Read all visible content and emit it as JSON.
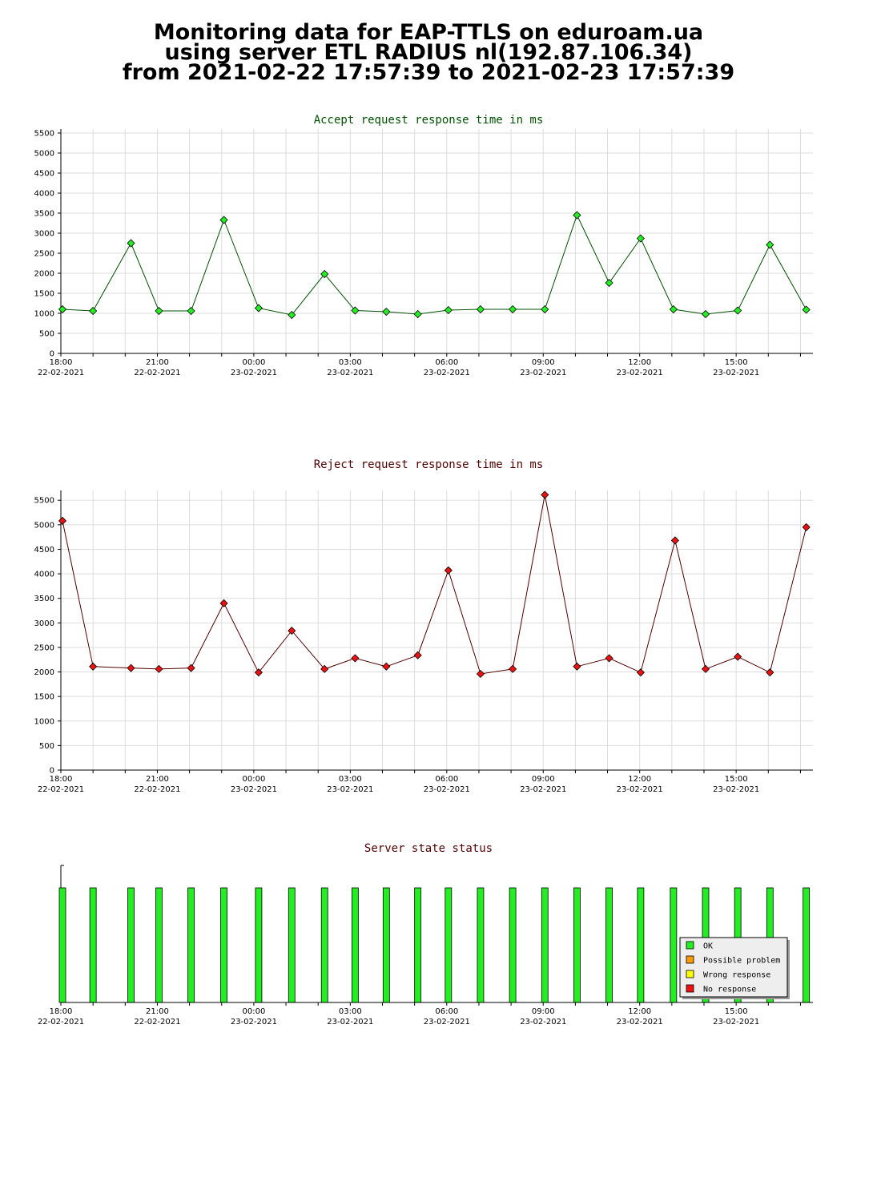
{
  "header": {
    "line1": "Monitoring data for EAP-TTLS on eduroam.ua",
    "line2": "using server ETL RADIUS nl(192.87.106.34)",
    "line3": "from 2021-02-22 17:57:39 to 2021-02-23 17:57:39"
  },
  "colors": {
    "accept_title": "#005000",
    "accept_marker": "#22ee22",
    "accept_line": "#005000",
    "reject_title": "#500000",
    "reject_marker": "#ee1111",
    "reject_line": "#500000",
    "status_bar": "#22ee22",
    "grid": "#dddddd"
  },
  "x_ticks": [
    {
      "time": "18:00",
      "date": "22-02-2021"
    },
    {
      "time": "21:00",
      "date": "22-02-2021"
    },
    {
      "time": "00:00",
      "date": "23-02-2021"
    },
    {
      "time": "03:00",
      "date": "23-02-2021"
    },
    {
      "time": "06:00",
      "date": "23-02-2021"
    },
    {
      "time": "09:00",
      "date": "23-02-2021"
    },
    {
      "time": "12:00",
      "date": "23-02-2021"
    },
    {
      "time": "15:00",
      "date": "23-02-2021"
    }
  ],
  "chart_data": [
    {
      "type": "line",
      "title": "Accept request response time in ms",
      "x_unit": "hours since 2021-02-22 18:00",
      "ylim": [
        0,
        5600
      ],
      "yticks": [
        0,
        500,
        1000,
        1500,
        2000,
        2500,
        3000,
        3500,
        4000,
        4500,
        5000,
        5500
      ],
      "grid": true,
      "x": [
        0.05,
        1.0,
        2.18,
        3.05,
        4.05,
        5.07,
        6.15,
        7.18,
        8.2,
        9.15,
        10.12,
        11.1,
        12.05,
        13.05,
        14.05,
        15.05,
        16.05,
        17.05,
        18.03,
        19.05,
        20.05,
        21.05,
        22.05,
        23.18
      ],
      "values": [
        1100,
        1060,
        2750,
        1060,
        1060,
        3330,
        1130,
        960,
        1980,
        1070,
        1040,
        980,
        1080,
        1100,
        1100,
        1100,
        3450,
        1760,
        2870,
        1100,
        980,
        1070,
        2710,
        1090
      ]
    },
    {
      "type": "line",
      "title": "Reject request response time in ms",
      "x_unit": "hours since 2021-02-22 18:00",
      "ylim": [
        0,
        5700
      ],
      "yticks": [
        0,
        500,
        1000,
        1500,
        2000,
        2500,
        3000,
        3500,
        4000,
        4500,
        5000,
        5500
      ],
      "grid": true,
      "x": [
        0.05,
        1.0,
        2.18,
        3.05,
        4.05,
        5.07,
        6.15,
        7.18,
        8.2,
        9.15,
        10.12,
        11.1,
        12.05,
        13.05,
        14.05,
        15.05,
        16.05,
        17.05,
        18.03,
        19.1,
        20.05,
        21.05,
        22.05,
        23.18
      ],
      "values": [
        5080,
        2110,
        2080,
        2060,
        2080,
        3400,
        1990,
        2840,
        2060,
        2280,
        2110,
        2340,
        4070,
        1960,
        2060,
        5610,
        2110,
        2280,
        1990,
        4680,
        2060,
        2310,
        1990,
        4950
      ]
    },
    {
      "type": "bar",
      "title": "Server state status",
      "x_unit": "hours since 2021-02-22 18:00",
      "x": [
        0.05,
        1.0,
        2.18,
        3.05,
        4.05,
        5.07,
        6.15,
        7.18,
        8.2,
        9.15,
        10.12,
        11.1,
        12.05,
        13.05,
        14.05,
        15.05,
        16.05,
        17.05,
        18.03,
        19.05,
        20.05,
        21.05,
        22.05,
        23.18
      ],
      "status": [
        "OK",
        "OK",
        "OK",
        "OK",
        "OK",
        "OK",
        "OK",
        "OK",
        "OK",
        "OK",
        "OK",
        "OK",
        "OK",
        "OK",
        "OK",
        "OK",
        "OK",
        "OK",
        "OK",
        "OK",
        "OK",
        "OK",
        "OK",
        "OK"
      ],
      "legend": [
        {
          "label": "OK",
          "color": "#22ee22"
        },
        {
          "label": "Possible problem",
          "color": "#ff9900"
        },
        {
          "label": "Wrong response",
          "color": "#ffff00"
        },
        {
          "label": "No response",
          "color": "#ee1111"
        }
      ],
      "legend_position": "bottom-right"
    }
  ]
}
